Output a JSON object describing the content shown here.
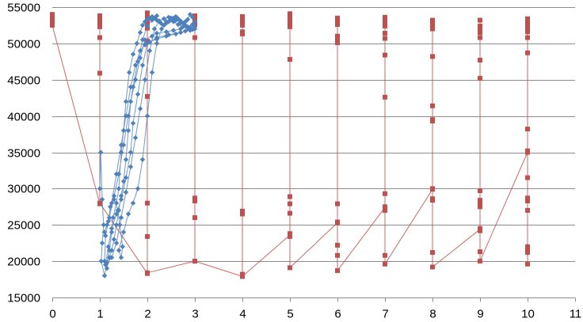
{
  "chart_data": {
    "type": "scatter",
    "title": "",
    "xlabel": "",
    "ylabel": "",
    "xlim": [
      0,
      11
    ],
    "ylim": [
      15000,
      55000
    ],
    "x_ticks": [
      0,
      1,
      2,
      3,
      4,
      5,
      6,
      7,
      8,
      9,
      10,
      11
    ],
    "x_tick_labels": [
      "0",
      "1",
      "2",
      "3",
      "4",
      "5",
      "6",
      "7",
      "8",
      "9",
      "10",
      "11"
    ],
    "y_ticks": [
      15000,
      20000,
      25000,
      30000,
      35000,
      40000,
      45000,
      50000,
      55000
    ],
    "y_tick_labels": [
      "15000",
      "20000",
      "25000",
      "30000",
      "35000",
      "40000",
      "45000",
      "50000",
      "55000"
    ],
    "grid": "horizontal",
    "legend": "none",
    "series": [
      {
        "color": "#c0504d",
        "marker": "square",
        "points": [
          [
            0,
            54000
          ],
          [
            0,
            53700
          ],
          [
            0,
            53400
          ],
          [
            0,
            53100
          ],
          [
            0,
            52800
          ],
          [
            0,
            52500
          ],
          [
            1,
            27900
          ],
          [
            1,
            53800
          ],
          [
            1,
            53500
          ],
          [
            1,
            53200
          ],
          [
            1,
            52900
          ],
          [
            1,
            52600
          ],
          [
            1,
            52300
          ],
          [
            1,
            50800
          ],
          [
            1,
            45900
          ],
          [
            1,
            28000
          ],
          [
            2,
            18300
          ],
          [
            2,
            54200
          ],
          [
            2,
            53900
          ],
          [
            2,
            53600
          ],
          [
            2,
            53300
          ],
          [
            2,
            53000
          ],
          [
            2,
            52700
          ],
          [
            2,
            52400
          ],
          [
            2,
            52100
          ],
          [
            2,
            50300
          ],
          [
            2,
            42700
          ],
          [
            2,
            28000
          ],
          [
            2,
            23400
          ],
          [
            2,
            18400
          ],
          [
            3,
            20000
          ],
          [
            3,
            53800
          ],
          [
            3,
            53500
          ],
          [
            3,
            53200
          ],
          [
            3,
            52900
          ],
          [
            3,
            52600
          ],
          [
            3,
            50800
          ],
          [
            3,
            28700
          ],
          [
            3,
            28300
          ],
          [
            3,
            26000
          ],
          [
            3,
            20000
          ],
          [
            4,
            17900
          ],
          [
            4,
            53700
          ],
          [
            4,
            53400
          ],
          [
            4,
            53100
          ],
          [
            4,
            52800
          ],
          [
            4,
            52500
          ],
          [
            4,
            51600
          ],
          [
            4,
            51300
          ],
          [
            4,
            26900
          ],
          [
            4,
            26500
          ],
          [
            4,
            18200
          ],
          [
            4,
            17900
          ],
          [
            5,
            23600
          ],
          [
            5,
            54100
          ],
          [
            5,
            53800
          ],
          [
            5,
            53500
          ],
          [
            5,
            53200
          ],
          [
            5,
            52900
          ],
          [
            5,
            52600
          ],
          [
            5,
            52300
          ],
          [
            5,
            47800
          ],
          [
            5,
            28900
          ],
          [
            5,
            27900
          ],
          [
            5,
            26600
          ],
          [
            5,
            23800
          ],
          [
            5,
            23400
          ],
          [
            5,
            19100
          ],
          [
            6,
            25300
          ],
          [
            6,
            53500
          ],
          [
            6,
            53200
          ],
          [
            6,
            52900
          ],
          [
            6,
            52600
          ],
          [
            6,
            51000
          ],
          [
            6,
            50700
          ],
          [
            6,
            50400
          ],
          [
            6,
            50100
          ],
          [
            6,
            27900
          ],
          [
            6,
            25400
          ],
          [
            6,
            22200
          ],
          [
            6,
            20800
          ],
          [
            6,
            18700
          ],
          [
            7,
            27400
          ],
          [
            7,
            53600
          ],
          [
            7,
            53300
          ],
          [
            7,
            53000
          ],
          [
            7,
            52700
          ],
          [
            7,
            52400
          ],
          [
            7,
            51400
          ],
          [
            7,
            50700
          ],
          [
            7,
            48400
          ],
          [
            7,
            42600
          ],
          [
            7,
            29300
          ],
          [
            7,
            27500
          ],
          [
            7,
            27000
          ],
          [
            7,
            20800
          ],
          [
            7,
            19600
          ],
          [
            8,
            29900
          ],
          [
            8,
            53200
          ],
          [
            8,
            52900
          ],
          [
            8,
            52600
          ],
          [
            8,
            52300
          ],
          [
            8,
            52000
          ],
          [
            8,
            48200
          ],
          [
            8,
            41400
          ],
          [
            8,
            39500
          ],
          [
            8,
            39300
          ],
          [
            8,
            30000
          ],
          [
            8,
            28600
          ],
          [
            8,
            28400
          ],
          [
            8,
            21200
          ],
          [
            8,
            19200
          ],
          [
            9,
            24400
          ],
          [
            9,
            53200
          ],
          [
            9,
            52400
          ],
          [
            9,
            52100
          ],
          [
            9,
            51800
          ],
          [
            9,
            51500
          ],
          [
            9,
            50800
          ],
          [
            9,
            47700
          ],
          [
            9,
            45200
          ],
          [
            9,
            29700
          ],
          [
            9,
            28400
          ],
          [
            9,
            27800
          ],
          [
            9,
            27500
          ],
          [
            9,
            24500
          ],
          [
            9,
            24200
          ],
          [
            9,
            21300
          ],
          [
            9,
            20000
          ],
          [
            10,
            35000
          ],
          [
            10,
            53400
          ],
          [
            10,
            53100
          ],
          [
            10,
            52800
          ],
          [
            10,
            52500
          ],
          [
            10,
            52200
          ],
          [
            10,
            51900
          ],
          [
            10,
            51600
          ],
          [
            10,
            50800
          ],
          [
            10,
            48700
          ],
          [
            10,
            38200
          ],
          [
            10,
            35200
          ],
          [
            10,
            31500
          ],
          [
            10,
            28700
          ],
          [
            10,
            28300
          ],
          [
            10,
            27000
          ],
          [
            10,
            22000
          ],
          [
            10,
            21500
          ],
          [
            10,
            21200
          ],
          [
            10,
            19600
          ]
        ]
      },
      {
        "color": "#4f81bd",
        "marker": "diamond",
        "points": [
          [
            1.0,
            30000
          ],
          [
            1.02,
            35000
          ],
          [
            1.05,
            28500
          ],
          [
            1.08,
            25000
          ],
          [
            1.05,
            22500
          ],
          [
            1.03,
            20000
          ],
          [
            1.1,
            18000
          ],
          [
            1.15,
            19800
          ],
          [
            1.2,
            21500
          ],
          [
            1.25,
            24000
          ],
          [
            1.28,
            26000
          ],
          [
            1.35,
            28000
          ],
          [
            1.4,
            30000
          ],
          [
            1.45,
            35000
          ],
          [
            1.5,
            38000
          ],
          [
            1.55,
            42000
          ],
          [
            1.62,
            46000
          ],
          [
            1.7,
            48500
          ],
          [
            1.78,
            50000
          ],
          [
            1.85,
            51500
          ],
          [
            1.9,
            52500
          ],
          [
            1.95,
            53000
          ],
          [
            2.0,
            53300
          ],
          [
            2.05,
            53500
          ],
          [
            2.1,
            53700
          ],
          [
            2.15,
            53500
          ],
          [
            2.2,
            53200
          ],
          [
            2.25,
            53000
          ],
          [
            2.3,
            52700
          ],
          [
            2.35,
            52500
          ],
          [
            2.4,
            52800
          ],
          [
            2.45,
            53000
          ],
          [
            2.5,
            53300
          ],
          [
            2.55,
            53500
          ],
          [
            2.6,
            53700
          ],
          [
            2.65,
            53400
          ],
          [
            2.7,
            53100
          ],
          [
            2.75,
            52800
          ],
          [
            2.8,
            53000
          ],
          [
            2.85,
            53300
          ],
          [
            2.9,
            54000
          ],
          [
            2.95,
            53600
          ],
          [
            3.0,
            53000
          ],
          [
            2.95,
            52600
          ],
          [
            2.85,
            52300
          ],
          [
            2.7,
            52000
          ],
          [
            2.55,
            51800
          ],
          [
            2.4,
            51600
          ],
          [
            2.2,
            51400
          ],
          [
            2.1,
            51000
          ],
          [
            1.95,
            50500
          ],
          [
            1.85,
            48000
          ],
          [
            1.75,
            45000
          ],
          [
            1.65,
            42000
          ],
          [
            1.6,
            38000
          ],
          [
            1.55,
            34000
          ],
          [
            1.5,
            31000
          ],
          [
            1.45,
            29000
          ],
          [
            1.4,
            27000
          ],
          [
            1.35,
            25000
          ],
          [
            1.3,
            23000
          ],
          [
            1.25,
            21500
          ],
          [
            1.2,
            20500
          ],
          [
            1.15,
            19000
          ],
          [
            1.1,
            20000
          ],
          [
            1.12,
            23500
          ],
          [
            1.18,
            25500
          ],
          [
            1.22,
            27500
          ],
          [
            1.3,
            28500
          ],
          [
            1.38,
            27000
          ],
          [
            1.42,
            25000
          ],
          [
            1.48,
            22000
          ],
          [
            1.45,
            20500
          ],
          [
            1.4,
            21500
          ],
          [
            1.5,
            24000
          ],
          [
            1.6,
            26500
          ],
          [
            1.7,
            28000
          ],
          [
            1.8,
            30000
          ],
          [
            1.9,
            34000
          ],
          [
            2.0,
            40000
          ],
          [
            2.1,
            46000
          ],
          [
            2.2,
            50000
          ],
          [
            2.3,
            52000
          ],
          [
            2.4,
            53000
          ],
          [
            2.5,
            53500
          ],
          [
            2.6,
            53200
          ],
          [
            2.7,
            52800
          ],
          [
            2.8,
            52500
          ],
          [
            2.9,
            52200
          ],
          [
            3.0,
            52000
          ],
          [
            2.9,
            51800
          ],
          [
            2.7,
            51500
          ],
          [
            2.45,
            51200
          ],
          [
            2.2,
            50800
          ],
          [
            2.0,
            50000
          ],
          [
            1.9,
            47000
          ],
          [
            1.8,
            43000
          ],
          [
            1.7,
            39000
          ],
          [
            1.65,
            35000
          ],
          [
            1.55,
            31500
          ],
          [
            1.45,
            28500
          ],
          [
            1.35,
            26500
          ],
          [
            1.25,
            24500
          ],
          [
            1.18,
            22000
          ],
          [
            1.12,
            19500
          ],
          [
            1.25,
            20500
          ],
          [
            1.35,
            22500
          ],
          [
            1.45,
            26000
          ],
          [
            1.55,
            29500
          ],
          [
            1.65,
            33000
          ],
          [
            1.75,
            37000
          ],
          [
            1.85,
            41000
          ],
          [
            1.95,
            45000
          ],
          [
            2.05,
            49000
          ],
          [
            2.15,
            52000
          ],
          [
            2.25,
            53100
          ],
          [
            2.35,
            53400
          ],
          [
            2.45,
            53600
          ],
          [
            2.55,
            53000
          ],
          [
            2.65,
            52600
          ],
          [
            2.75,
            52300
          ],
          [
            2.85,
            52100
          ],
          [
            2.95,
            51900
          ],
          [
            3.0,
            52300
          ],
          [
            2.8,
            51700
          ],
          [
            2.6,
            51300
          ],
          [
            2.4,
            51000
          ],
          [
            2.2,
            50600
          ],
          [
            2.05,
            50200
          ],
          [
            1.95,
            49800
          ],
          [
            1.85,
            49000
          ],
          [
            1.75,
            47000
          ],
          [
            1.65,
            44000
          ],
          [
            1.55,
            40000
          ],
          [
            1.45,
            36000
          ],
          [
            1.35,
            32000
          ],
          [
            1.25,
            28000
          ],
          [
            1.15,
            25000
          ],
          [
            1.1,
            24000
          ],
          [
            1.2,
            26000
          ],
          [
            1.3,
            29000
          ],
          [
            1.4,
            32000
          ],
          [
            1.5,
            36000
          ],
          [
            1.6,
            40000
          ],
          [
            1.7,
            44000
          ],
          [
            1.8,
            47500
          ],
          [
            1.9,
            50500
          ],
          [
            2.0,
            52400
          ],
          [
            2.1,
            53200
          ],
          [
            2.2,
            53800
          ]
        ]
      }
    ]
  }
}
